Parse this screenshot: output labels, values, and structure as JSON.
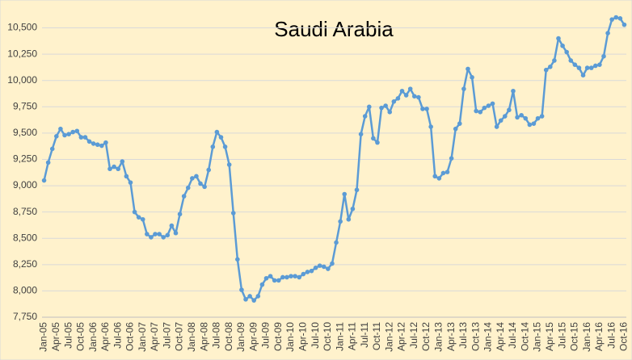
{
  "chart_data": {
    "type": "line",
    "title": "Saudi Arabia",
    "categories": [
      "Jan-05",
      null,
      null,
      "Apr-05",
      null,
      null,
      "Jul-05",
      null,
      null,
      "Oct-05",
      null,
      null,
      "Jan-06",
      null,
      null,
      "Apr-06",
      null,
      null,
      "Jul-06",
      null,
      null,
      "Oct-06",
      null,
      null,
      "Jan-07",
      null,
      null,
      "Apr-07",
      null,
      null,
      "Jul-07",
      null,
      null,
      "Oct-07",
      null,
      null,
      "Jan-08",
      null,
      null,
      "Apr-08",
      null,
      null,
      "Jul-08",
      null,
      null,
      "Oct-08",
      null,
      null,
      "Jan-09",
      null,
      null,
      "Apr-09",
      null,
      null,
      "Jul-09",
      null,
      null,
      "Oct-09",
      null,
      null,
      "Jan-10",
      null,
      null,
      "Apr-10",
      null,
      null,
      "Jul-10",
      null,
      null,
      "Oct-10",
      null,
      null,
      "Jan-11",
      null,
      null,
      "Apr-11",
      null,
      null,
      "Jul-11",
      null,
      null,
      "Oct-11",
      null,
      null,
      "Jan-12",
      null,
      null,
      "Apr-12",
      null,
      null,
      "Jul-12",
      null,
      null,
      "Oct-12",
      null,
      null,
      "Jan-13",
      null,
      null,
      "Apr-13",
      null,
      null,
      "Jul-13",
      null,
      null,
      "Oct-13",
      null,
      null,
      "Jan-14",
      null,
      null,
      "Apr-14",
      null,
      null,
      "Jul-14",
      null,
      null,
      "Oct-14",
      null,
      null,
      "Jan-15",
      null,
      null,
      "Apr-15",
      null,
      null,
      "Jul-15",
      null,
      null,
      "Oct-15",
      null,
      null,
      "Jan-16",
      null,
      null,
      "Apr-16",
      null,
      null,
      "Jul-16",
      null,
      null,
      "Oct-16"
    ],
    "values": [
      9050,
      9220,
      9350,
      9470,
      9540,
      9480,
      9490,
      9510,
      9520,
      9460,
      9460,
      9420,
      9400,
      9390,
      9380,
      9410,
      9160,
      9180,
      9160,
      9230,
      9090,
      9030,
      8750,
      8700,
      8680,
      8540,
      8510,
      8540,
      8540,
      8510,
      8530,
      8620,
      8550,
      8730,
      8900,
      8980,
      9070,
      9090,
      9020,
      8990,
      9150,
      9370,
      9510,
      9460,
      9370,
      9200,
      8740,
      8300,
      8010,
      7920,
      7950,
      7910,
      7950,
      8060,
      8120,
      8140,
      8100,
      8100,
      8130,
      8130,
      8140,
      8140,
      8130,
      8160,
      8180,
      8190,
      8220,
      8240,
      8230,
      8210,
      8260,
      8460,
      8660,
      8920,
      8680,
      8780,
      8960,
      9490,
      9660,
      9750,
      9450,
      9410,
      9740,
      9760,
      9700,
      9800,
      9830,
      9900,
      9860,
      9920,
      9850,
      9840,
      9730,
      9730,
      9560,
      9090,
      9070,
      9120,
      9130,
      9260,
      9540,
      9590,
      9920,
      10110,
      10030,
      9710,
      9700,
      9740,
      9760,
      9780,
      9560,
      9620,
      9660,
      9720,
      9900,
      9650,
      9670,
      9640,
      9580,
      9590,
      9640,
      9660,
      10100,
      10130,
      10190,
      10400,
      10330,
      10270,
      10190,
      10150,
      10120,
      10050,
      10120,
      10120,
      10140,
      10150,
      10230,
      10450,
      10580,
      10600,
      10590,
      10530
    ],
    "color": "#5b9bd5",
    "ylim": [
      7750,
      10650
    ],
    "yticks": [
      {
        "value": 7750,
        "label": "7,750"
      },
      {
        "value": 8000,
        "label": "8,000"
      },
      {
        "value": 8250,
        "label": "8,250"
      },
      {
        "value": 8500,
        "label": "8,500"
      },
      {
        "value": 8750,
        "label": "8,750"
      },
      {
        "value": 9000,
        "label": "9,000"
      },
      {
        "value": 9250,
        "label": "9,250"
      },
      {
        "value": 9500,
        "label": "9,500"
      },
      {
        "value": 9750,
        "label": "9,750"
      },
      {
        "value": 10000,
        "label": "10,000"
      },
      {
        "value": 10250,
        "label": "10,250"
      },
      {
        "value": 10500,
        "label": "10,500"
      }
    ],
    "grid": true
  }
}
